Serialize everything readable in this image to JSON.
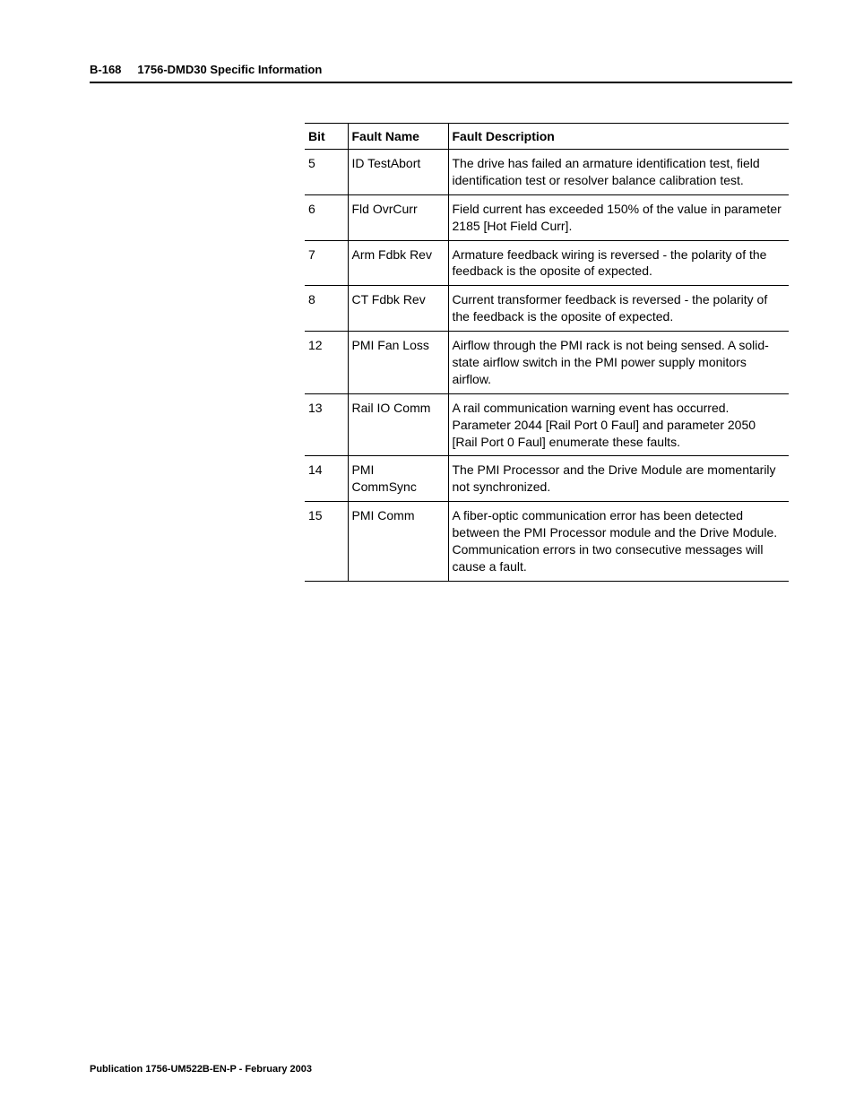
{
  "header": {
    "page_number": "B-168",
    "title": "1756-DMD30 Specific Information"
  },
  "table": {
    "columns": [
      "Bit",
      "Fault Name",
      "Fault Description"
    ],
    "rows": [
      {
        "bit": "5",
        "name": "ID TestAbort",
        "desc": "The drive has failed an armature identification test, field identification test or resolver balance calibration test."
      },
      {
        "bit": "6",
        "name": "Fld OvrCurr",
        "desc": "Field current has exceeded 150% of the value in parameter 2185 [Hot Field Curr]."
      },
      {
        "bit": "7",
        "name": "Arm Fdbk Rev",
        "desc": "Armature feedback wiring is reversed - the polarity of the feedback is the oposite of expected."
      },
      {
        "bit": "8",
        "name": "CT Fdbk Rev",
        "desc": "Current transformer feedback is reversed - the polarity of the feedback is the oposite of expected."
      },
      {
        "bit": "12",
        "name": "PMI Fan Loss",
        "desc": "Airflow through the PMI rack is not being sensed. A solid-state airflow switch in the PMI power supply monitors airflow."
      },
      {
        "bit": "13",
        "name": "Rail IO Comm",
        "desc": "A rail communication warning event has occurred. Parameter 2044 [Rail Port 0 Faul] and parameter 2050 [Rail Port 0 Faul] enumerate these faults."
      },
      {
        "bit": "14",
        "name": "PMI CommSync",
        "desc": "The PMI Processor and the Drive Module are momentarily not synchronized."
      },
      {
        "bit": "15",
        "name": "PMI Comm",
        "desc": "A fiber-optic communication error has been detected between the PMI Processor module and the Drive Module. Communication errors in two consecutive messages will cause a fault."
      }
    ]
  },
  "footer": {
    "text": "Publication 1756-UM522B-EN-P - February 2003"
  }
}
